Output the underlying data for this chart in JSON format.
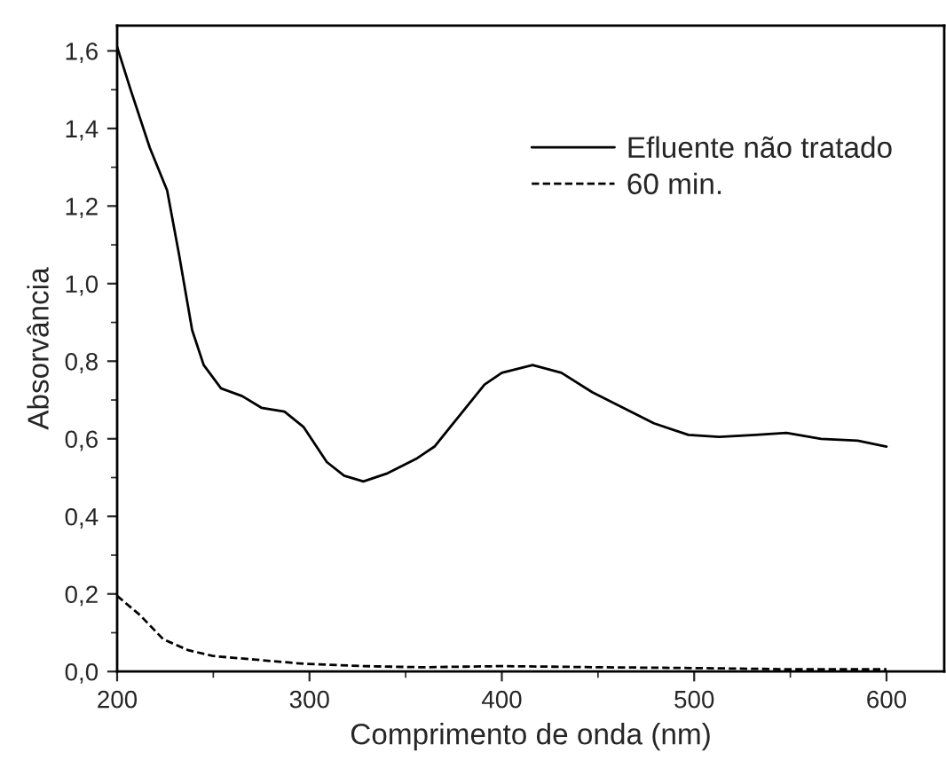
{
  "chart_data": {
    "type": "line",
    "xlabel": "Comprimento de onda (nm)",
    "ylabel": "Absorvância",
    "xlim": [
      200,
      630
    ],
    "ylim": [
      0,
      1.665
    ],
    "xticks": [
      200,
      300,
      400,
      500,
      600
    ],
    "yticks": [
      {
        "value": 0,
        "label": "0,0"
      },
      {
        "value": 0.2,
        "label": "0,2"
      },
      {
        "value": 0.4,
        "label": "0,4"
      },
      {
        "value": 0.6,
        "label": "0,6"
      },
      {
        "value": 0.8,
        "label": "0,8"
      },
      {
        "value": 1.0,
        "label": "1,0"
      },
      {
        "value": 1.2,
        "label": "1,2"
      },
      {
        "value": 1.4,
        "label": "1,4"
      },
      {
        "value": 1.6,
        "label": "1,6"
      }
    ],
    "grid": false,
    "legend": "top right",
    "marker": "none",
    "series": [
      {
        "name": "Efluente não tratado",
        "color": "#000000",
        "line_style": "solid",
        "x": [
          200,
          207,
          217,
          226,
          232,
          239,
          245,
          254,
          265,
          275,
          287,
          297,
          309,
          318,
          328,
          340,
          356,
          365,
          378,
          391,
          400,
          416,
          431,
          447,
          463,
          479,
          497,
          513,
          532,
          548,
          566,
          585,
          600
        ],
        "values": [
          1.61,
          1.5,
          1.35,
          1.24,
          1.08,
          0.88,
          0.79,
          0.73,
          0.71,
          0.68,
          0.67,
          0.63,
          0.54,
          0.505,
          0.49,
          0.51,
          0.55,
          0.58,
          0.66,
          0.74,
          0.77,
          0.79,
          0.77,
          0.72,
          0.68,
          0.64,
          0.61,
          0.605,
          0.61,
          0.615,
          0.6,
          0.595,
          0.58
        ]
      },
      {
        "name": "60 min.",
        "color": "#000000",
        "line_style": "dashed",
        "x": [
          200,
          212,
          224,
          237,
          250,
          271,
          297,
          328,
          359,
          400,
          453,
          500,
          548,
          600
        ],
        "values": [
          0.195,
          0.145,
          0.083,
          0.055,
          0.04,
          0.031,
          0.02,
          0.014,
          0.011,
          0.014,
          0.011,
          0.009,
          0.006,
          0.006
        ]
      }
    ]
  }
}
